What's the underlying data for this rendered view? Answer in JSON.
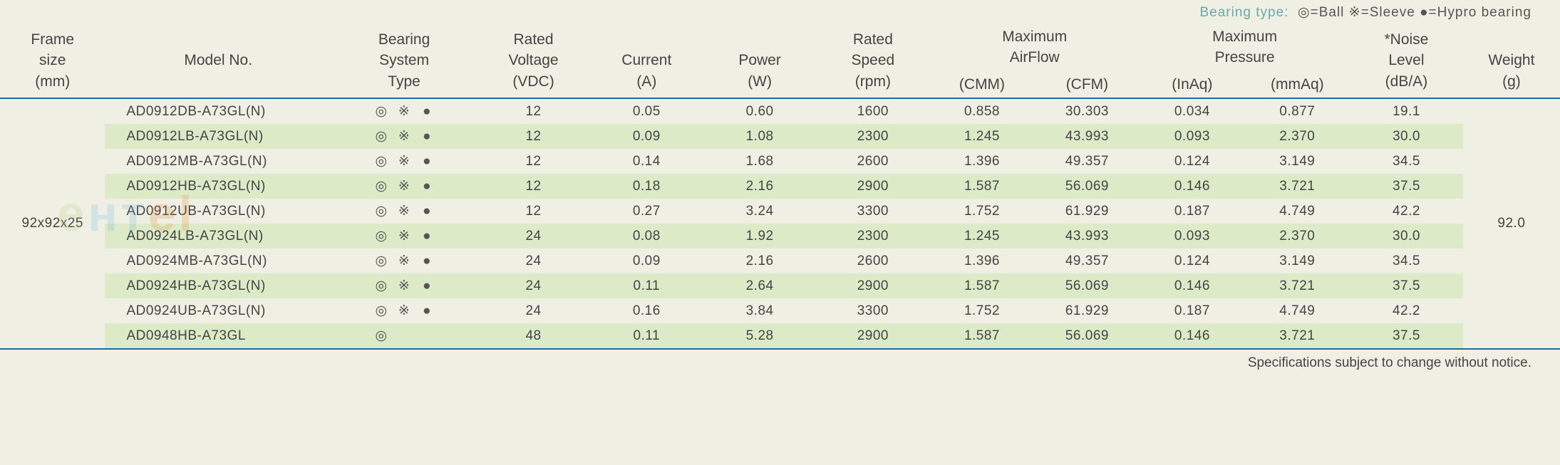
{
  "legend": {
    "prefix": "Bearing type:",
    "ball": "◎=Ball",
    "sleeve": "※=Sleeve",
    "hypro": "●=Hypro bearing"
  },
  "header": {
    "frame_l1": "Frame",
    "frame_l2": "size",
    "frame_l3": "(mm)",
    "model": "Model No.",
    "bearing_l1": "Bearing",
    "bearing_l2": "System",
    "bearing_l3": "Type",
    "voltage_l1": "Rated",
    "voltage_l2": "Voltage",
    "voltage_l3": "(VDC)",
    "current_l1": "Current",
    "current_l2": "(A)",
    "power_l1": "Power",
    "power_l2": "(W)",
    "speed_l1": "Rated",
    "speed_l2": "Speed",
    "speed_l3": "(rpm)",
    "airflow_l1": "Maximum",
    "airflow_l2": "AirFlow",
    "airflow_cmm": "(CMM)",
    "airflow_cfm": "(CFM)",
    "pressure_l1": "Maximum",
    "pressure_l2": "Pressure",
    "pressure_inaq": "(InAq)",
    "pressure_mmaq": "(mmAq)",
    "noise_l1": "*Noise",
    "noise_l2": "Level",
    "noise_l3": "(dB/A)",
    "weight_l1": "Weight",
    "weight_l2": "(g)"
  },
  "group": {
    "frame_size": "92x92x25",
    "weight": "92.0"
  },
  "rows": [
    {
      "model": "AD0912DB-A73GL(N)",
      "ball": "◎",
      "sleeve": "※",
      "hypro": "●",
      "voltage": "12",
      "current": "0.05",
      "power": "0.60",
      "speed": "1600",
      "cmm": "0.858",
      "cfm": "30.303",
      "inaq": "0.034",
      "mmaq": "0.877",
      "noise": "19.1"
    },
    {
      "model": "AD0912LB-A73GL(N)",
      "ball": "◎",
      "sleeve": "※",
      "hypro": "●",
      "voltage": "12",
      "current": "0.09",
      "power": "1.08",
      "speed": "2300",
      "cmm": "1.245",
      "cfm": "43.993",
      "inaq": "0.093",
      "mmaq": "2.370",
      "noise": "30.0"
    },
    {
      "model": "AD0912MB-A73GL(N)",
      "ball": "◎",
      "sleeve": "※",
      "hypro": "●",
      "voltage": "12",
      "current": "0.14",
      "power": "1.68",
      "speed": "2600",
      "cmm": "1.396",
      "cfm": "49.357",
      "inaq": "0.124",
      "mmaq": "3.149",
      "noise": "34.5"
    },
    {
      "model": "AD0912HB-A73GL(N)",
      "ball": "◎",
      "sleeve": "※",
      "hypro": "●",
      "voltage": "12",
      "current": "0.18",
      "power": "2.16",
      "speed": "2900",
      "cmm": "1.587",
      "cfm": "56.069",
      "inaq": "0.146",
      "mmaq": "3.721",
      "noise": "37.5"
    },
    {
      "model": "AD0912UB-A73GL(N)",
      "ball": "◎",
      "sleeve": "※",
      "hypro": "●",
      "voltage": "12",
      "current": "0.27",
      "power": "3.24",
      "speed": "3300",
      "cmm": "1.752",
      "cfm": "61.929",
      "inaq": "0.187",
      "mmaq": "4.749",
      "noise": "42.2"
    },
    {
      "model": "AD0924LB-A73GL(N)",
      "ball": "◎",
      "sleeve": "※",
      "hypro": "●",
      "voltage": "24",
      "current": "0.08",
      "power": "1.92",
      "speed": "2300",
      "cmm": "1.245",
      "cfm": "43.993",
      "inaq": "0.093",
      "mmaq": "2.370",
      "noise": "30.0"
    },
    {
      "model": "AD0924MB-A73GL(N)",
      "ball": "◎",
      "sleeve": "※",
      "hypro": "●",
      "voltage": "24",
      "current": "0.09",
      "power": "2.16",
      "speed": "2600",
      "cmm": "1.396",
      "cfm": "49.357",
      "inaq": "0.124",
      "mmaq": "3.149",
      "noise": "34.5"
    },
    {
      "model": "AD0924HB-A73GL(N)",
      "ball": "◎",
      "sleeve": "※",
      "hypro": "●",
      "voltage": "24",
      "current": "0.11",
      "power": "2.64",
      "speed": "2900",
      "cmm": "1.587",
      "cfm": "56.069",
      "inaq": "0.146",
      "mmaq": "3.721",
      "noise": "37.5"
    },
    {
      "model": "AD0924UB-A73GL(N)",
      "ball": "◎",
      "sleeve": "※",
      "hypro": "●",
      "voltage": "24",
      "current": "0.16",
      "power": "3.84",
      "speed": "3300",
      "cmm": "1.752",
      "cfm": "61.929",
      "inaq": "0.187",
      "mmaq": "4.749",
      "noise": "42.2"
    },
    {
      "model": "AD0948HB-A73GL",
      "ball": "◎",
      "sleeve": "",
      "hypro": "",
      "voltage": "48",
      "current": "0.11",
      "power": "5.28",
      "speed": "2900",
      "cmm": "1.587",
      "cfm": "56.069",
      "inaq": "0.146",
      "mmaq": "3.721",
      "noise": "37.5"
    }
  ],
  "footnote": "Specifications subject to change without notice.",
  "colors": {
    "page_bg": "#f0efe3",
    "stripe_bg": "#dceac7",
    "rule": "#1a6fa5",
    "text": "#444444",
    "legend_text": "#66aaaa"
  }
}
